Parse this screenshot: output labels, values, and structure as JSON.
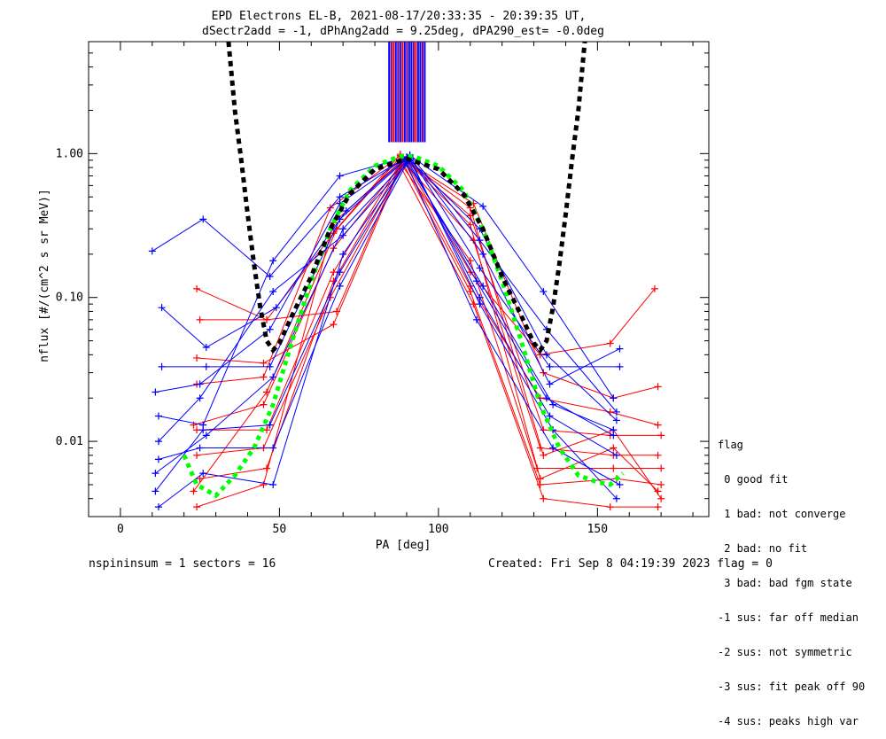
{
  "chart_data": {
    "type": "scatter",
    "title": "EPD Electrons EL-B, 2021-08-17/20:33:35 - 20:39:35 UT,",
    "subtitle": "dSectr2add = -1, dPhAng2add = 9.25deg, dPA290_est=  -0.0deg",
    "xlabel": "PA [deg]",
    "ylabel": "nflux [#/(cm^2 s sr MeV)]",
    "xlim": [
      -10,
      185
    ],
    "ylim": [
      0.003,
      6.0
    ],
    "yscale": "log",
    "x_ticks": [
      0,
      50,
      100,
      150
    ],
    "y_ticks": [
      {
        "value": 0.01,
        "label": "0.01"
      },
      {
        "value": 0.1,
        "label": "0.10"
      },
      {
        "value": 1.0,
        "label": "1.00"
      }
    ],
    "colors": {
      "red": "#ff0000",
      "blue": "#0000ff",
      "fit": "#000000",
      "green": "#00ff00",
      "purple": "#800080"
    },
    "vertical_markers": [
      {
        "x": 84.5,
        "color": "#0000ff"
      },
      {
        "x": 85.2,
        "color": "#800080"
      },
      {
        "x": 85.9,
        "color": "#ff0000"
      },
      {
        "x": 86.6,
        "color": "#0000ff"
      },
      {
        "x": 87.3,
        "color": "#800080"
      },
      {
        "x": 88.0,
        "color": "#0000ff"
      },
      {
        "x": 88.7,
        "color": "#ff0000"
      },
      {
        "x": 89.4,
        "color": "#0000ff"
      },
      {
        "x": 90.1,
        "color": "#800080"
      },
      {
        "x": 90.8,
        "color": "#0000ff"
      },
      {
        "x": 91.5,
        "color": "#0000ff"
      },
      {
        "x": 92.2,
        "color": "#800080"
      },
      {
        "x": 92.9,
        "color": "#ff0000"
      },
      {
        "x": 93.6,
        "color": "#0000ff"
      },
      {
        "x": 94.3,
        "color": "#0000ff"
      },
      {
        "x": 95.0,
        "color": "#800080"
      },
      {
        "x": 95.7,
        "color": "#0000ff"
      }
    ],
    "series": [
      {
        "color": "blue",
        "points": [
          [
            10,
            0.21
          ],
          [
            26,
            0.35
          ],
          [
            47,
            0.14
          ],
          [
            69,
            0.5
          ],
          [
            91,
            0.97
          ],
          [
            114,
            0.43
          ],
          [
            133,
            0.11
          ],
          [
            155,
            0.02
          ]
        ]
      },
      {
        "color": "blue",
        "points": [
          [
            11,
            0.022
          ],
          [
            25,
            0.025
          ],
          [
            47,
            0.06
          ],
          [
            69,
            0.45
          ],
          [
            90,
            0.95
          ],
          [
            113,
            0.3
          ],
          [
            134,
            0.04
          ],
          [
            156,
            0.014
          ]
        ]
      },
      {
        "color": "blue",
        "points": [
          [
            12,
            0.015
          ],
          [
            26,
            0.013
          ],
          [
            48,
            0.18
          ],
          [
            69,
            0.7
          ],
          [
            91,
            0.96
          ],
          [
            113,
            0.16
          ],
          [
            135,
            0.033
          ],
          [
            157,
            0.033
          ]
        ]
      },
      {
        "color": "blue",
        "points": [
          [
            11,
            0.006
          ],
          [
            27,
            0.011
          ],
          [
            48,
            0.028
          ],
          [
            70,
            0.3
          ],
          [
            91,
            0.94
          ],
          [
            114,
            0.2
          ],
          [
            135,
            0.025
          ],
          [
            157,
            0.044
          ]
        ]
      },
      {
        "color": "blue",
        "points": [
          [
            12,
            0.0035
          ],
          [
            26,
            0.006
          ],
          [
            48,
            0.005
          ],
          [
            70,
            0.2
          ],
          [
            91,
            0.93
          ],
          [
            113,
            0.09
          ],
          [
            136,
            0.012
          ],
          [
            156,
            0.004
          ]
        ]
      },
      {
        "color": "blue",
        "points": [
          [
            13,
            0.033
          ],
          [
            27,
            0.033
          ],
          [
            47,
            0.033
          ],
          [
            69,
            0.35
          ],
          [
            90,
            0.92
          ],
          [
            112,
            0.13
          ],
          [
            134,
            0.02
          ],
          [
            155,
            0.011
          ]
        ]
      },
      {
        "color": "blue",
        "points": [
          [
            12,
            0.01
          ],
          [
            25,
            0.02
          ],
          [
            48,
            0.11
          ],
          [
            70,
            0.27
          ],
          [
            91,
            0.9
          ],
          [
            113,
            0.1
          ],
          [
            135,
            0.015
          ],
          [
            156,
            0.008
          ]
        ]
      },
      {
        "color": "blue",
        "points": [
          [
            11,
            0.0045
          ],
          [
            26,
            0.012
          ],
          [
            47,
            0.013
          ],
          [
            69,
            0.15
          ],
          [
            90,
            0.88
          ],
          [
            114,
            0.12
          ],
          [
            136,
            0.018
          ],
          [
            155,
            0.012
          ]
        ]
      },
      {
        "color": "blue",
        "points": [
          [
            13,
            0.085
          ],
          [
            27,
            0.045
          ],
          [
            49,
            0.085
          ],
          [
            71,
            0.4
          ],
          [
            91,
            0.98
          ],
          [
            113,
            0.25
          ],
          [
            134,
            0.06
          ],
          [
            156,
            0.016
          ]
        ]
      },
      {
        "color": "blue",
        "points": [
          [
            12,
            0.0075
          ],
          [
            25,
            0.009
          ],
          [
            48,
            0.009
          ],
          [
            69,
            0.12
          ],
          [
            90,
            0.85
          ],
          [
            112,
            0.07
          ],
          [
            136,
            0.009
          ],
          [
            157,
            0.005
          ]
        ]
      },
      {
        "color": "red",
        "points": [
          [
            24,
            0.115
          ],
          [
            46,
            0.07
          ],
          [
            68,
            0.08
          ],
          [
            89,
            0.93
          ],
          [
            110,
            0.15
          ],
          [
            132,
            0.04
          ],
          [
            154,
            0.048
          ],
          [
            168,
            0.115
          ]
        ]
      },
      {
        "color": "red",
        "points": [
          [
            25,
            0.07
          ],
          [
            46,
            0.07
          ],
          [
            67,
            0.28
          ],
          [
            88,
            0.95
          ],
          [
            111,
            0.45
          ],
          [
            133,
            0.03
          ],
          [
            155,
            0.02
          ],
          [
            169,
            0.024
          ]
        ]
      },
      {
        "color": "red",
        "points": [
          [
            24,
            0.038
          ],
          [
            45,
            0.035
          ],
          [
            67,
            0.065
          ],
          [
            89,
            0.9
          ],
          [
            110,
            0.12
          ],
          [
            132,
            0.02
          ],
          [
            154,
            0.016
          ],
          [
            169,
            0.013
          ]
        ]
      },
      {
        "color": "red",
        "points": [
          [
            24,
            0.025
          ],
          [
            45,
            0.028
          ],
          [
            66,
            0.42
          ],
          [
            88,
            0.97
          ],
          [
            110,
            0.37
          ],
          [
            133,
            0.012
          ],
          [
            154,
            0.011
          ],
          [
            170,
            0.011
          ]
        ]
      },
      {
        "color": "red",
        "points": [
          [
            23,
            0.013
          ],
          [
            45,
            0.018
          ],
          [
            67,
            0.22
          ],
          [
            89,
            0.88
          ],
          [
            111,
            0.25
          ],
          [
            132,
            0.009
          ],
          [
            155,
            0.008
          ],
          [
            169,
            0.008
          ]
        ]
      },
      {
        "color": "red",
        "points": [
          [
            24,
            0.012
          ],
          [
            46,
            0.012
          ],
          [
            67,
            0.15
          ],
          [
            88,
            0.86
          ],
          [
            110,
            0.18
          ],
          [
            131,
            0.0065
          ],
          [
            155,
            0.0065
          ],
          [
            170,
            0.0065
          ]
        ]
      },
      {
        "color": "red",
        "points": [
          [
            24,
            0.008
          ],
          [
            45,
            0.009
          ],
          [
            66,
            0.1
          ],
          [
            89,
            0.84
          ],
          [
            110,
            0.11
          ],
          [
            132,
            0.005
          ],
          [
            156,
            0.0055
          ],
          [
            170,
            0.005
          ]
        ]
      },
      {
        "color": "red",
        "points": [
          [
            25,
            0.0055
          ],
          [
            46,
            0.0065
          ],
          [
            67,
            0.13
          ],
          [
            88,
            0.82
          ],
          [
            111,
            0.09
          ],
          [
            133,
            0.004
          ],
          [
            154,
            0.0035
          ],
          [
            169,
            0.0035
          ]
        ]
      },
      {
        "color": "red",
        "points": [
          [
            24,
            0.0035
          ],
          [
            45,
            0.005
          ],
          [
            67,
            0.33
          ],
          [
            89,
            0.92
          ],
          [
            110,
            0.42
          ],
          [
            133,
            0.008
          ],
          [
            155,
            0.012
          ],
          [
            170,
            0.004
          ]
        ]
      },
      {
        "color": "red",
        "points": [
          [
            23,
            0.0045
          ],
          [
            46,
            0.022
          ],
          [
            68,
            0.3
          ],
          [
            88,
            0.99
          ],
          [
            110,
            0.32
          ],
          [
            132,
            0.0055
          ],
          [
            155,
            0.009
          ],
          [
            169,
            0.0045
          ]
        ]
      }
    ],
    "fit_curve": [
      [
        34,
        6.0
      ],
      [
        36,
        2.0
      ],
      [
        38,
        0.9
      ],
      [
        40,
        0.38
      ],
      [
        42,
        0.17
      ],
      [
        44,
        0.085
      ],
      [
        46,
        0.05
      ],
      [
        48,
        0.043
      ],
      [
        50,
        0.048
      ],
      [
        54,
        0.075
      ],
      [
        60,
        0.14
      ],
      [
        66,
        0.3
      ],
      [
        72,
        0.52
      ],
      [
        80,
        0.78
      ],
      [
        90,
        0.92
      ],
      [
        100,
        0.78
      ],
      [
        108,
        0.52
      ],
      [
        114,
        0.3
      ],
      [
        120,
        0.14
      ],
      [
        126,
        0.075
      ],
      [
        130,
        0.048
      ],
      [
        132,
        0.043
      ],
      [
        134,
        0.05
      ],
      [
        136,
        0.085
      ],
      [
        138,
        0.17
      ],
      [
        140,
        0.38
      ],
      [
        142,
        0.9
      ],
      [
        144,
        2.0
      ],
      [
        146,
        6.0
      ]
    ],
    "green_curve": [
      [
        20,
        0.008
      ],
      [
        24,
        0.005
      ],
      [
        30,
        0.0042
      ],
      [
        36,
        0.0058
      ],
      [
        42,
        0.009
      ],
      [
        48,
        0.018
      ],
      [
        54,
        0.05
      ],
      [
        60,
        0.13
      ],
      [
        66,
        0.3
      ],
      [
        72,
        0.55
      ],
      [
        80,
        0.82
      ],
      [
        88,
        0.96
      ],
      [
        92,
        0.96
      ],
      [
        100,
        0.82
      ],
      [
        108,
        0.55
      ],
      [
        114,
        0.3
      ],
      [
        120,
        0.13
      ],
      [
        126,
        0.05
      ],
      [
        132,
        0.018
      ],
      [
        138,
        0.009
      ],
      [
        144,
        0.0058
      ],
      [
        150,
        0.0052
      ],
      [
        154,
        0.005
      ],
      [
        158,
        0.006
      ]
    ]
  },
  "footer": {
    "left": "nspininsum =  1  sectors = 16",
    "right": "Created: Fri Sep  8 04:19:39 2023   flag = 0"
  },
  "legend": {
    "title": "flag",
    "items": [
      " 0 good fit",
      " 1 bad: not converge",
      " 2 bad: no fit",
      " 3 bad: bad fgm state",
      "-1 sus: far off median",
      "-2 sus: not symmetric",
      "-3 sus: fit peak off 90",
      "-4 sus: peaks high var"
    ]
  }
}
